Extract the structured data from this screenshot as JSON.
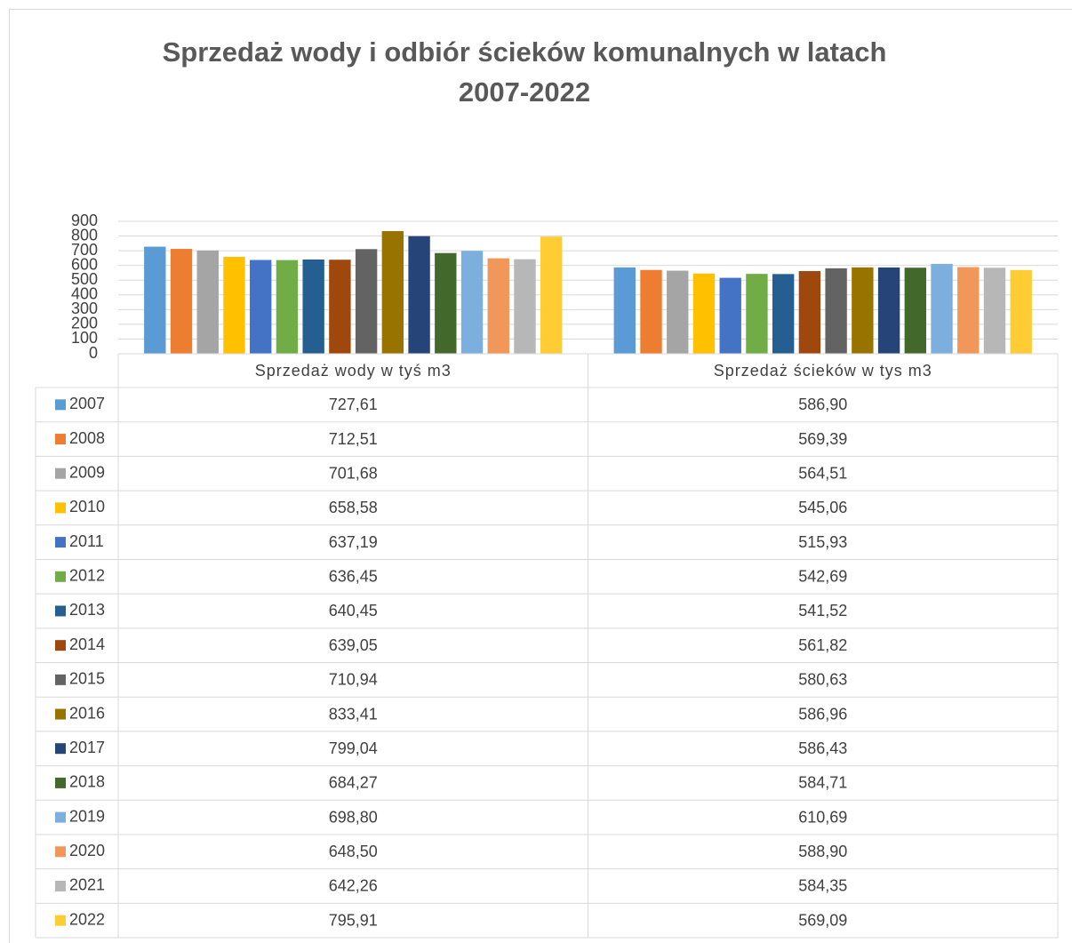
{
  "chart_data": {
    "type": "bar",
    "title": "Sprzedaż wody i odbiór ścieków komunalnych w latach 2007-2022",
    "categories": [
      "Sprzedaż wody w tyś m3",
      "Sprzedaż ścieków w tys m3"
    ],
    "ylim": [
      0,
      900
    ],
    "yticks": [
      0,
      100,
      200,
      300,
      400,
      500,
      600,
      700,
      800,
      900
    ],
    "grid": true,
    "series": [
      {
        "name": "2007",
        "color": "#5b9bd5",
        "values": [
          727.61,
          586.9
        ],
        "value_labels": [
          "727,61",
          "586,90"
        ]
      },
      {
        "name": "2008",
        "color": "#ed7d31",
        "values": [
          712.51,
          569.39
        ],
        "value_labels": [
          "712,51",
          "569,39"
        ]
      },
      {
        "name": "2009",
        "color": "#a5a5a5",
        "values": [
          701.68,
          564.51
        ],
        "value_labels": [
          "701,68",
          "564,51"
        ]
      },
      {
        "name": "2010",
        "color": "#ffc000",
        "values": [
          658.58,
          545.06
        ],
        "value_labels": [
          "658,58",
          "545,06"
        ]
      },
      {
        "name": "2011",
        "color": "#4472c4",
        "values": [
          637.19,
          515.93
        ],
        "value_labels": [
          "637,19",
          "515,93"
        ]
      },
      {
        "name": "2012",
        "color": "#70ad47",
        "values": [
          636.45,
          542.69
        ],
        "value_labels": [
          "636,45",
          "542,69"
        ]
      },
      {
        "name": "2013",
        "color": "#255e91",
        "values": [
          640.45,
          541.52
        ],
        "value_labels": [
          "640,45",
          "541,52"
        ]
      },
      {
        "name": "2014",
        "color": "#9e480e",
        "values": [
          639.05,
          561.82
        ],
        "value_labels": [
          "639,05",
          "561,82"
        ]
      },
      {
        "name": "2015",
        "color": "#636363",
        "values": [
          710.94,
          580.63
        ],
        "value_labels": [
          "710,94",
          "580,63"
        ]
      },
      {
        "name": "2016",
        "color": "#997300",
        "values": [
          833.41,
          586.96
        ],
        "value_labels": [
          "833,41",
          "586,96"
        ]
      },
      {
        "name": "2017",
        "color": "#264478",
        "values": [
          799.04,
          586.43
        ],
        "value_labels": [
          "799,04",
          "586,43"
        ]
      },
      {
        "name": "2018",
        "color": "#43682b",
        "values": [
          684.27,
          584.71
        ],
        "value_labels": [
          "684,27",
          "584,71"
        ]
      },
      {
        "name": "2019",
        "color": "#7cafdd",
        "values": [
          698.8,
          610.69
        ],
        "value_labels": [
          "698,80",
          "610,69"
        ]
      },
      {
        "name": "2020",
        "color": "#f1975a",
        "values": [
          648.5,
          588.9
        ],
        "value_labels": [
          "648,50",
          "588,90"
        ]
      },
      {
        "name": "2021",
        "color": "#b7b7b7",
        "values": [
          642.26,
          584.35
        ],
        "value_labels": [
          "642,26",
          "584,35"
        ]
      },
      {
        "name": "2022",
        "color": "#ffcd33",
        "values": [
          795.91,
          569.09
        ],
        "value_labels": [
          "795,91",
          "569,09"
        ]
      }
    ]
  }
}
